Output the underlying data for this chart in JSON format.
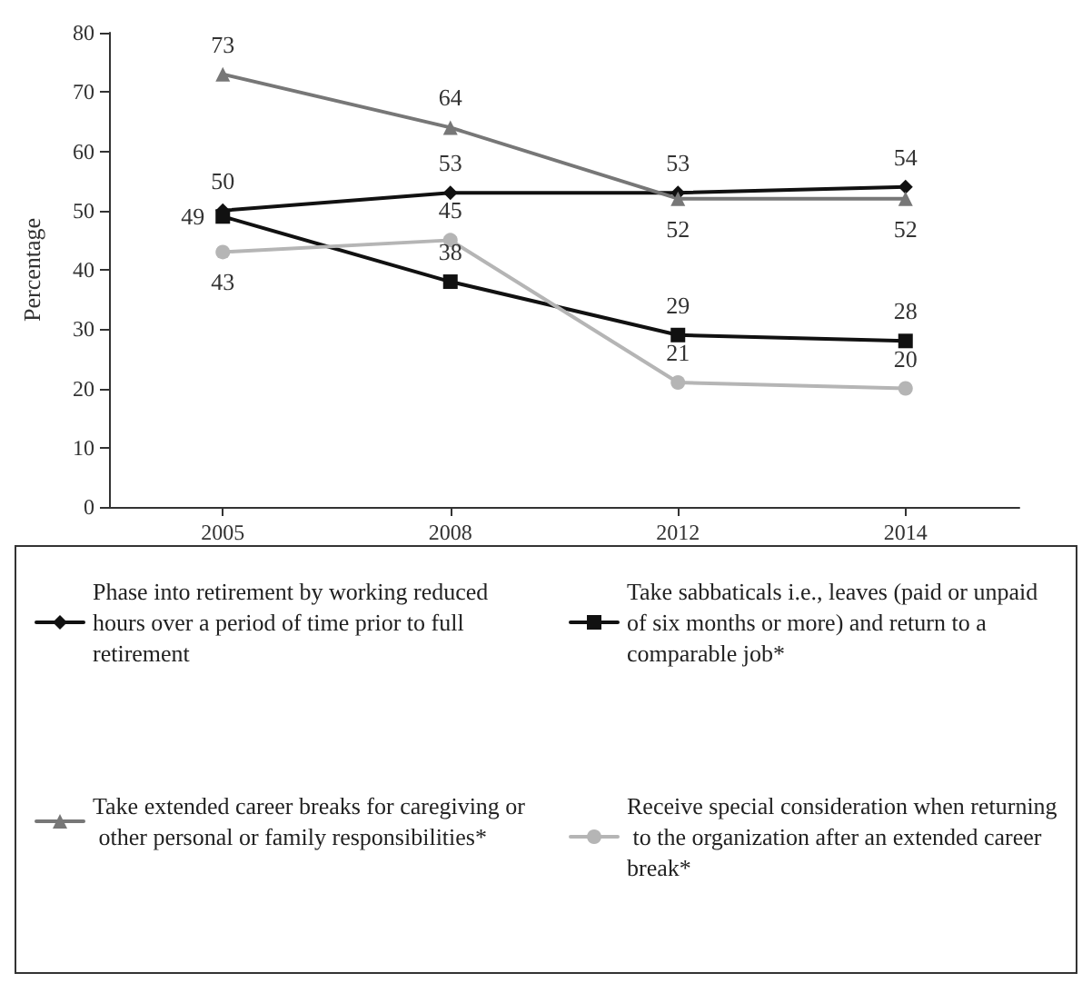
{
  "chart_data": {
    "type": "line",
    "ylabel": "Percentage",
    "categories": [
      "2005",
      "2008",
      "2012",
      "2014"
    ],
    "ylim": [
      0,
      80
    ],
    "yticks": [
      0,
      10,
      20,
      30,
      40,
      50,
      60,
      70,
      80
    ],
    "grid": false,
    "legend": "bottom",
    "data_labels": true,
    "line_style": "solid",
    "series": [
      {
        "name": "Phase into retirement by working reduced hours over a period of time prior to full retirement",
        "color": "#111111",
        "marker": "diamond",
        "values": [
          50,
          53,
          53,
          54
        ]
      },
      {
        "name": "Take sabbaticals i.e., leaves (paid or unpaid of six months or more) and return to a comparable job*",
        "color": "#111111",
        "marker": "square",
        "values": [
          49,
          38,
          29,
          28
        ]
      },
      {
        "name": "Take extended career breaks for caregiving or other personal or family responsibilities*",
        "color": "#777777",
        "marker": "triangle",
        "values": [
          73,
          64,
          52,
          52
        ]
      },
      {
        "name": "Receive special consideration when returning to the organization after an extended career break*",
        "color": "#b5b5b5",
        "marker": "circle",
        "values": [
          43,
          45,
          21,
          20
        ]
      }
    ]
  }
}
